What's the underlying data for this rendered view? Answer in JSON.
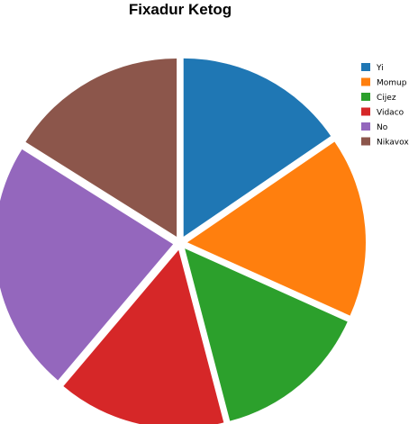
{
  "chart_data": {
    "type": "pie",
    "title": "Fixadur Ketog",
    "legend_position": "right",
    "series": [
      {
        "name": "Yi",
        "value": 14.8,
        "color": "#1f77b4"
      },
      {
        "name": "Momup",
        "value": 15.6,
        "color": "#ff7f0e"
      },
      {
        "name": "Cijez",
        "value": 13.6,
        "color": "#2ca02c"
      },
      {
        "name": "Vidaco",
        "value": 14.6,
        "color": "#d62728"
      },
      {
        "name": "No",
        "value": 21.8,
        "color": "#9467bd"
      },
      {
        "name": "Nikavox",
        "value": 15.4,
        "color": "#8c564b"
      }
    ]
  }
}
